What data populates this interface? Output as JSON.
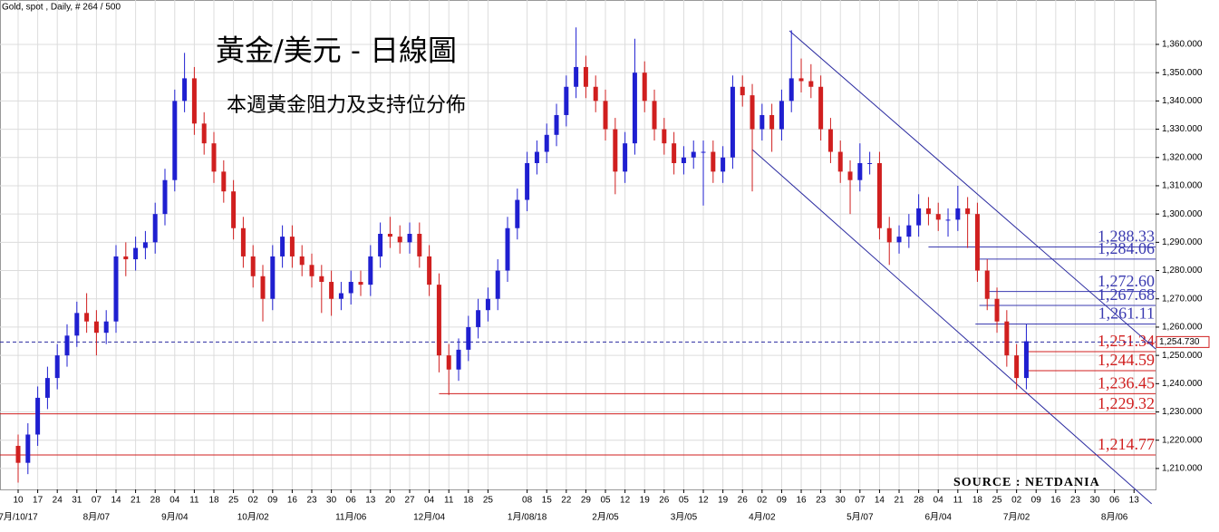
{
  "chart_data": {
    "type": "candlestick",
    "header": "Gold, spot , Daily, # 264 / 500",
    "title": "黃金/美元 - 日線圖",
    "subtitle": "本週黃金阻力及支持位分佈",
    "source": "SOURCE : NETDANIA",
    "up_color": "#1f1fd0",
    "down_color": "#d01f1f",
    "grid": true,
    "xlim": [
      -0.926,
      58.1
    ],
    "ylim": [
      1202.6,
      1375.7
    ],
    "yticks": [
      {
        "value": 1210,
        "label": "1,210.000"
      },
      {
        "value": 1220,
        "label": "1,220.000"
      },
      {
        "value": 1230,
        "label": "1,230.000"
      },
      {
        "value": 1240,
        "label": "1,240.000"
      },
      {
        "value": 1250,
        "label": "1,250.000"
      },
      {
        "value": 1260,
        "label": "1,260.000"
      },
      {
        "value": 1270,
        "label": "1,270.000"
      },
      {
        "value": 1280,
        "label": "1,280.000"
      },
      {
        "value": 1290,
        "label": "1,290.000"
      },
      {
        "value": 1300,
        "label": "1,300.000"
      },
      {
        "value": 1310,
        "label": "1,310.000"
      },
      {
        "value": 1320,
        "label": "1,320.000"
      },
      {
        "value": 1330,
        "label": "1,330.000"
      },
      {
        "value": 1340,
        "label": "1,340.000"
      },
      {
        "value": 1350,
        "label": "1,350.000"
      },
      {
        "value": 1360,
        "label": "1,360.000"
      }
    ],
    "xticks": [
      {
        "value": 0,
        "label": "10"
      },
      {
        "value": 1,
        "label": "17"
      },
      {
        "value": 2,
        "label": "24"
      },
      {
        "value": 3,
        "label": "31"
      },
      {
        "value": 4,
        "label": "07"
      },
      {
        "value": 5,
        "label": "14"
      },
      {
        "value": 6,
        "label": "21"
      },
      {
        "value": 7,
        "label": "28"
      },
      {
        "value": 8,
        "label": "04"
      },
      {
        "value": 9,
        "label": "11"
      },
      {
        "value": 10,
        "label": "18"
      },
      {
        "value": 11,
        "label": "25"
      },
      {
        "value": 12,
        "label": "02"
      },
      {
        "value": 13,
        "label": "09"
      },
      {
        "value": 14,
        "label": "16"
      },
      {
        "value": 15,
        "label": "23"
      },
      {
        "value": 16,
        "label": "30"
      },
      {
        "value": 17,
        "label": "06"
      },
      {
        "value": 18,
        "label": "13"
      },
      {
        "value": 19,
        "label": "20"
      },
      {
        "value": 20,
        "label": "27"
      },
      {
        "value": 21,
        "label": "04"
      },
      {
        "value": 22,
        "label": "11"
      },
      {
        "value": 23,
        "label": "18"
      },
      {
        "value": 24,
        "label": "25"
      },
      {
        "value": 26,
        "label": "08"
      },
      {
        "value": 27,
        "label": "15"
      },
      {
        "value": 28,
        "label": "22"
      },
      {
        "value": 29,
        "label": "29"
      },
      {
        "value": 30,
        "label": "05"
      },
      {
        "value": 31,
        "label": "12"
      },
      {
        "value": 32,
        "label": "19"
      },
      {
        "value": 33,
        "label": "26"
      },
      {
        "value": 34,
        "label": "05"
      },
      {
        "value": 35,
        "label": "12"
      },
      {
        "value": 36,
        "label": "19"
      },
      {
        "value": 37,
        "label": "26"
      },
      {
        "value": 38,
        "label": "02"
      },
      {
        "value": 39,
        "label": "09"
      },
      {
        "value": 40,
        "label": "16"
      },
      {
        "value": 41,
        "label": "23"
      },
      {
        "value": 42,
        "label": "30"
      },
      {
        "value": 43,
        "label": "07"
      },
      {
        "value": 44,
        "label": "14"
      },
      {
        "value": 45,
        "label": "21"
      },
      {
        "value": 46,
        "label": "28"
      },
      {
        "value": 47,
        "label": "04"
      },
      {
        "value": 48,
        "label": "11"
      },
      {
        "value": 49,
        "label": "18"
      },
      {
        "value": 50,
        "label": "25"
      },
      {
        "value": 51,
        "label": "02"
      },
      {
        "value": 52,
        "label": "09"
      },
      {
        "value": 53,
        "label": "16"
      },
      {
        "value": 54,
        "label": "23"
      },
      {
        "value": 55,
        "label": "30"
      },
      {
        "value": 56,
        "label": "06"
      },
      {
        "value": 57,
        "label": "13"
      }
    ],
    "month_ticks": [
      {
        "value": 0,
        "label": "7月/10/17"
      },
      {
        "value": 4,
        "label": "8月/07"
      },
      {
        "value": 8,
        "label": "9月/04"
      },
      {
        "value": 12,
        "label": "10月/02"
      },
      {
        "value": 17,
        "label": "11月/06"
      },
      {
        "value": 21,
        "label": "12月/04"
      },
      {
        "value": 26,
        "label": "1月/08/18"
      },
      {
        "value": 30,
        "label": "2月/05"
      },
      {
        "value": 34,
        "label": "3月/05"
      },
      {
        "value": 38,
        "label": "4月/02"
      },
      {
        "value": 43,
        "label": "5月/07"
      },
      {
        "value": 47,
        "label": "6月/04"
      },
      {
        "value": 51,
        "label": "7月/02"
      },
      {
        "value": 56,
        "label": "8月/06"
      }
    ],
    "x": [
      0,
      0.5,
      1,
      1.5,
      2,
      2.5,
      3,
      3.5,
      4,
      4.5,
      5,
      5.5,
      6,
      6.5,
      7,
      7.5,
      8,
      8.5,
      9,
      9.5,
      10,
      10.5,
      11,
      11.5,
      12,
      12.5,
      13,
      13.5,
      14,
      14.5,
      15,
      15.5,
      16,
      16.5,
      17,
      17.5,
      18,
      18.5,
      19,
      19.5,
      20,
      20.5,
      21,
      21.5,
      22,
      22.5,
      23,
      23.5,
      24,
      24.5,
      25,
      25.5,
      26,
      26.5,
      27,
      27.5,
      28,
      28.5,
      29,
      29.5,
      30,
      30.5,
      31,
      31.5,
      32,
      32.5,
      33,
      33.5,
      34,
      34.5,
      35,
      35.5,
      36,
      36.5,
      37,
      37.5,
      38,
      38.5,
      39,
      39.5,
      40,
      40.5,
      41,
      41.5,
      42,
      42.5,
      43,
      43.5,
      44,
      44.5,
      45,
      45.5,
      46,
      46.5,
      47,
      47.5,
      48,
      48.5,
      49,
      49.5,
      50,
      50.5,
      51,
      51.5
    ],
    "open": [
      1218,
      1212,
      1222,
      1235,
      1242,
      1250,
      1257,
      1265,
      1262,
      1258,
      1262,
      1285,
      1284,
      1288,
      1290,
      1300,
      1312,
      1340,
      1348,
      1332,
      1325,
      1315,
      1308,
      1295,
      1285,
      1278,
      1270,
      1285,
      1292,
      1285,
      1282,
      1278,
      1276,
      1270,
      1272,
      1276,
      1275,
      1285,
      1293,
      1292,
      1290,
      1293,
      1285,
      1275,
      1250,
      1245,
      1252,
      1260,
      1266,
      1270,
      1280,
      1295,
      1305,
      1318,
      1322,
      1328,
      1335,
      1345,
      1352,
      1345,
      1340,
      1330,
      1315,
      1325,
      1350,
      1340,
      1330,
      1325,
      1318,
      1320,
      1322,
      1322,
      1315,
      1320,
      1345,
      1342,
      1330,
      1335,
      1330,
      1340,
      1348,
      1347,
      1345,
      1330,
      1322,
      1315,
      1312,
      1318,
      1318,
      1295,
      1290,
      1292,
      1296,
      1302,
      1300,
      1298,
      1298,
      1302,
      1300,
      1280,
      1270,
      1262,
      1250,
      1242
    ],
    "high": [
      1222,
      1226,
      1239,
      1246,
      1254,
      1261,
      1269,
      1272,
      1266,
      1266,
      1289,
      1290,
      1292,
      1294,
      1304,
      1316,
      1344,
      1357,
      1352,
      1336,
      1329,
      1319,
      1312,
      1299,
      1289,
      1282,
      1289,
      1296,
      1296,
      1289,
      1286,
      1282,
      1280,
      1276,
      1280,
      1280,
      1289,
      1297,
      1299,
      1296,
      1297,
      1297,
      1289,
      1279,
      1254,
      1256,
      1264,
      1270,
      1274,
      1284,
      1299,
      1309,
      1322,
      1326,
      1332,
      1339,
      1349,
      1366,
      1356,
      1349,
      1344,
      1334,
      1329,
      1362,
      1354,
      1344,
      1334,
      1329,
      1324,
      1326,
      1326,
      1326,
      1324,
      1349,
      1349,
      1346,
      1339,
      1339,
      1344,
      1365,
      1355,
      1353,
      1349,
      1334,
      1326,
      1319,
      1325,
      1322,
      1322,
      1299,
      1296,
      1300,
      1307,
      1306,
      1304,
      1302,
      1310,
      1306,
      1304,
      1284,
      1274,
      1266,
      1254,
      1261
    ],
    "low": [
      1205,
      1208,
      1218,
      1231,
      1238,
      1246,
      1253,
      1258,
      1250,
      1254,
      1258,
      1278,
      1280,
      1284,
      1286,
      1296,
      1308,
      1336,
      1328,
      1321,
      1311,
      1304,
      1291,
      1281,
      1274,
      1262,
      1266,
      1281,
      1281,
      1278,
      1274,
      1265,
      1264,
      1266,
      1268,
      1271,
      1271,
      1281,
      1288,
      1286,
      1286,
      1281,
      1271,
      1244,
      1236,
      1241,
      1248,
      1256,
      1262,
      1266,
      1276,
      1291,
      1301,
      1314,
      1318,
      1324,
      1331,
      1341,
      1341,
      1336,
      1326,
      1307,
      1311,
      1321,
      1336,
      1326,
      1321,
      1314,
      1314,
      1316,
      1303,
      1311,
      1311,
      1316,
      1338,
      1308,
      1326,
      1322,
      1326,
      1336,
      1343,
      1341,
      1326,
      1318,
      1311,
      1300,
      1308,
      1314,
      1291,
      1282,
      1286,
      1288,
      1292,
      1296,
      1294,
      1292,
      1294,
      1288,
      1276,
      1266,
      1258,
      1246,
      1238,
      1238
    ],
    "close": [
      1212,
      1222,
      1235,
      1242,
      1250,
      1257,
      1265,
      1262,
      1258,
      1262,
      1285,
      1284,
      1288,
      1290,
      1300,
      1312,
      1340,
      1348,
      1332,
      1325,
      1315,
      1308,
      1295,
      1285,
      1278,
      1270,
      1285,
      1292,
      1285,
      1282,
      1278,
      1276,
      1270,
      1272,
      1276,
      1275,
      1285,
      1293,
      1292,
      1290,
      1293,
      1285,
      1275,
      1250,
      1245,
      1252,
      1260,
      1266,
      1270,
      1280,
      1295,
      1305,
      1318,
      1322,
      1328,
      1335,
      1345,
      1352,
      1345,
      1340,
      1330,
      1315,
      1325,
      1350,
      1340,
      1330,
      1325,
      1318,
      1320,
      1322,
      1322,
      1315,
      1320,
      1345,
      1342,
      1330,
      1335,
      1330,
      1340,
      1348,
      1347,
      1345,
      1330,
      1322,
      1315,
      1312,
      1318,
      1318,
      1295,
      1290,
      1292,
      1296,
      1302,
      1300,
      1298,
      1298,
      1302,
      1300,
      1280,
      1270,
      1262,
      1250,
      1242,
      1255
    ],
    "last_price": {
      "value": 1254.73,
      "label": "1,254.730",
      "color": "#d01f1f"
    },
    "levels": [
      {
        "value": 1288.33,
        "label": "1,288.33",
        "start_x": 46.5,
        "color": "#3a3ab0"
      },
      {
        "value": 1284.06,
        "label": "1,284.06",
        "start_x": 49,
        "color": "#3a3ab0"
      },
      {
        "value": 1272.6,
        "label": "1,272.60",
        "start_x": 49.6,
        "color": "#3a3ab0"
      },
      {
        "value": 1267.68,
        "label": "1,267.68",
        "start_x": 49.1,
        "color": "#3a3ab0"
      },
      {
        "value": 1261.11,
        "label": "1,261.11",
        "start_x": 48.9,
        "color": "#3a3ab0"
      },
      {
        "value": 1251.34,
        "label": "1,251.34",
        "start_x": 51.4,
        "color": "#d01f1f"
      },
      {
        "value": 1244.59,
        "label": "1,244.59",
        "start_x": 51.4,
        "color": "#d01f1f"
      },
      {
        "value": 1236.45,
        "label": "1,236.45",
        "start_x": 21.5,
        "color": "#d01f1f"
      },
      {
        "value": 1229.32,
        "label": "1,229.32",
        "start_x": -0.926,
        "color": "#d01f1f"
      },
      {
        "value": 1214.77,
        "label": "1,214.77",
        "start_x": -0.926,
        "color": "#d01f1f"
      }
    ],
    "channel": [
      {
        "x": [
          39.4,
          58.1
        ],
        "y": [
          1364.8,
          1252.3
        ]
      },
      {
        "x": [
          37.5,
          57.9
        ],
        "y": [
          1322.8,
          1197.5
        ]
      }
    ],
    "channel_color": "#2a2aa0"
  }
}
